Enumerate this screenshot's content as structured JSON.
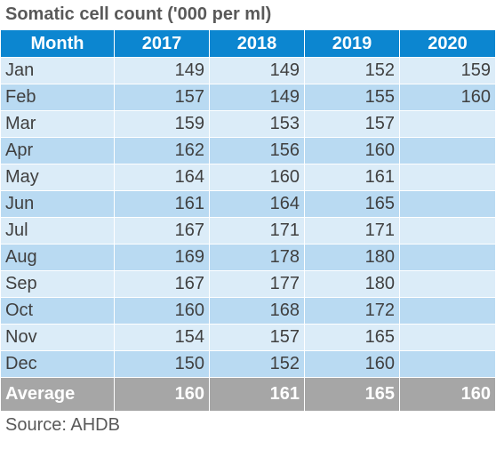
{
  "title": "Somatic cell count ('000 per ml)",
  "header": [
    "Month",
    "2017",
    "2018",
    "2019",
    "2020"
  ],
  "rows": [
    [
      "Jan",
      "149",
      "149",
      "152",
      "159"
    ],
    [
      "Feb",
      "157",
      "149",
      "155",
      "160"
    ],
    [
      "Mar",
      "159",
      "153",
      "157",
      ""
    ],
    [
      "Apr",
      "162",
      "156",
      "160",
      ""
    ],
    [
      "May",
      "164",
      "160",
      "161",
      ""
    ],
    [
      "Jun",
      "161",
      "164",
      "165",
      ""
    ],
    [
      "Jul",
      "167",
      "171",
      "171",
      ""
    ],
    [
      "Aug",
      "169",
      "178",
      "180",
      ""
    ],
    [
      "Sep",
      "167",
      "177",
      "180",
      ""
    ],
    [
      "Oct",
      "160",
      "168",
      "172",
      ""
    ],
    [
      "Nov",
      "154",
      "157",
      "165",
      ""
    ],
    [
      "Dec",
      "150",
      "152",
      "160",
      ""
    ]
  ],
  "footer": [
    "Average",
    "160",
    "161",
    "165",
    "160"
  ],
  "source": "Source: AHDB",
  "colors": {
    "header_bg": "#0c86d0",
    "row_light": "#dbecf8",
    "row_dark": "#b9daf2",
    "footer_bg": "#a6a6a6",
    "text": "#404040"
  }
}
